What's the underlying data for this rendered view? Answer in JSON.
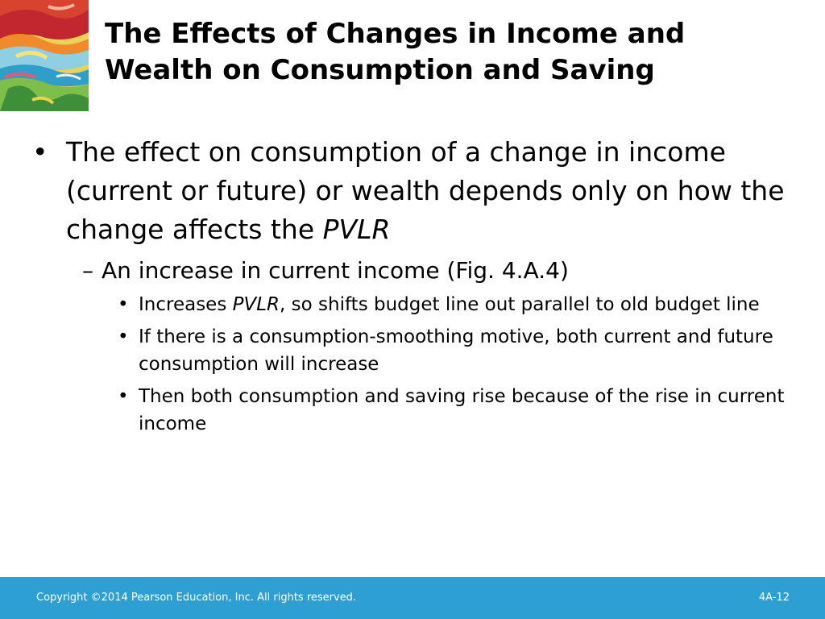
{
  "slide": {
    "title_line1": "The Effects of Changes in Income and",
    "title_line2": "Wealth on Consumption and Saving",
    "bullet1": {
      "marker": "•",
      "text": "The effect on consumption of a change in income (current or future) or wealth depends only on how the change affects the",
      "emph": "PVLR"
    },
    "sub1": {
      "marker": "–",
      "text": "An increase in current income (Fig. 4.A.4)"
    },
    "subsub": [
      {
        "marker": "•",
        "pre": "Increases ",
        "emph": "PVLR",
        "post": ", so shifts budget line out parallel to old budget line"
      },
      {
        "marker": "•",
        "text": "If there is a consumption-smoothing motive, both current and future consumption will increase"
      },
      {
        "marker": "•",
        "text": "Then both consumption and saving rise because of the rise in current income"
      }
    ]
  },
  "footer": {
    "copyright": "Copyright ©2014 Pearson Education, Inc. All rights reserved.",
    "page_number": "4A-12"
  },
  "colors": {
    "footer_bar": "#2d9fd2",
    "footer_text": "#ffffff"
  },
  "icons": {
    "corner_art": "abstract-painting-icon"
  }
}
